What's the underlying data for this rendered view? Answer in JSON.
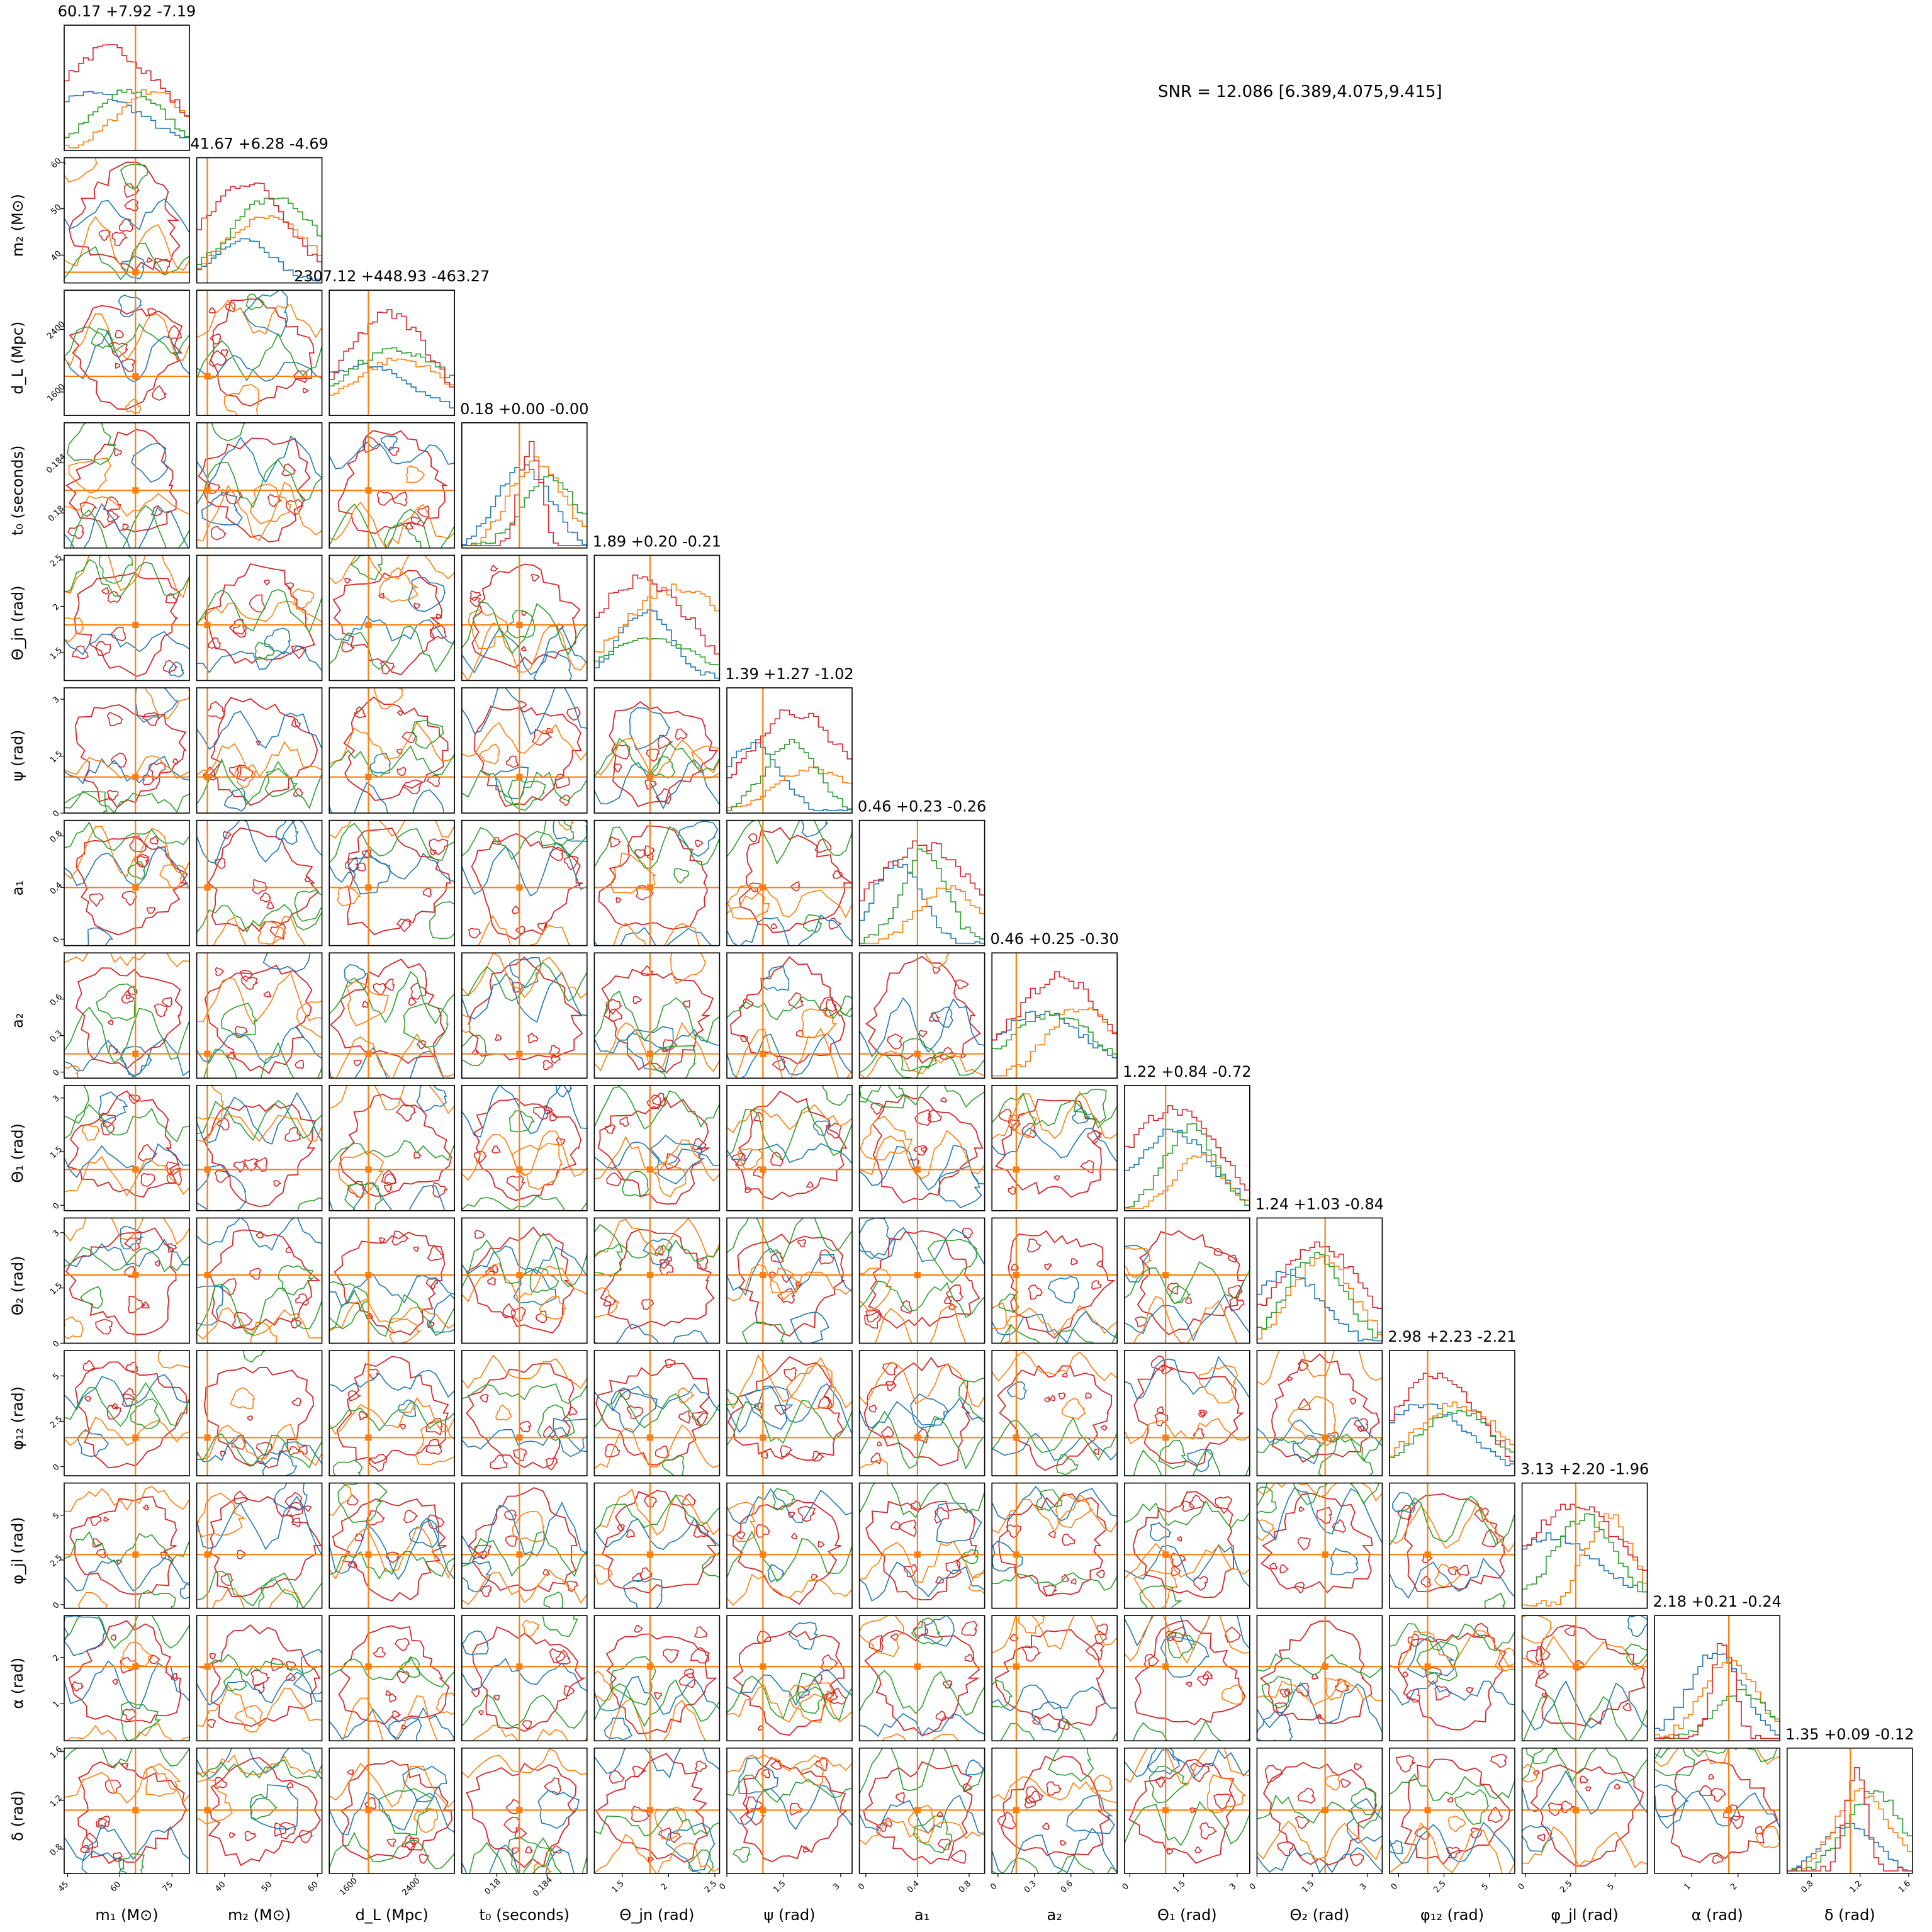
{
  "figure": {
    "snr_text": "SNR = 12.086 [6.389,4.075,9.415]"
  },
  "colors": {
    "injection": "#ff7f0e",
    "run_blue": "#1f77b4",
    "run_orange": "#ff7f0e",
    "run_green": "#2ca02c",
    "run_red": "#d62728",
    "frame": "#000000"
  },
  "chart_data": {
    "type": "corner",
    "description": "",
    "parameters": [
      {
        "label": "m₁ (M⊙)",
        "title": "60.17 +7.92 -7.19",
        "median": 60.17,
        "plus": 7.92,
        "minus": 7.19,
        "range": [
          44,
          80
        ],
        "ticks": [
          45,
          60,
          75
        ],
        "truth": 64.5
      },
      {
        "label": "m₂ (M⊙)",
        "title": "41.67 +6.28 -4.69",
        "median": 41.67,
        "plus": 6.28,
        "minus": 4.69,
        "range": [
          34,
          61
        ],
        "ticks": [
          40,
          50,
          60
        ],
        "truth": 36.3
      },
      {
        "label": "d_L (Mpc)",
        "title": "2307.12 +448.93 -463.27",
        "median": 2307.12,
        "plus": 448.93,
        "minus": 463.27,
        "range": [
          1300,
          2900
        ],
        "ticks": [
          1600,
          2400
        ],
        "truth": 1800
      },
      {
        "label": "t₀ (seconds)",
        "title": "0.18 +0.00 -0.00",
        "median": 0.18,
        "plus": 0.0,
        "minus": 0.0,
        "range": [
          0.1772,
          0.1872
        ],
        "ticks": [
          0.18,
          0.184
        ],
        "truth": 0.1818
      },
      {
        "label": "Θ_jn (rad)",
        "title": "1.89 +0.20 -0.21",
        "median": 1.89,
        "plus": 0.2,
        "minus": 0.21,
        "range": [
          1.2,
          2.55
        ],
        "ticks": [
          1.5,
          2.0,
          2.5
        ],
        "truth": 1.8
      },
      {
        "label": "ψ (rad)",
        "title": "1.39 +1.27 -1.02",
        "median": 1.39,
        "plus": 1.27,
        "minus": 1.02,
        "range": [
          0.0,
          3.3
        ],
        "ticks": [
          0.0,
          1.5,
          3.0
        ],
        "truth": 0.95
      },
      {
        "label": "a₁",
        "title": "0.46 +0.23 -0.26",
        "median": 0.46,
        "plus": 0.23,
        "minus": 0.26,
        "range": [
          -0.05,
          0.92
        ],
        "ticks": [
          0.0,
          0.4,
          0.8
        ],
        "truth": 0.4
      },
      {
        "label": "a₂",
        "title": "0.46 +0.25 -0.30",
        "median": 0.46,
        "plus": 0.25,
        "minus": 0.3,
        "range": [
          -0.05,
          0.98
        ],
        "ticks": [
          0.0,
          0.3,
          0.6
        ],
        "truth": 0.15
      },
      {
        "label": "Θ₁ (rad)",
        "title": "1.22 +0.84 -0.72",
        "median": 1.22,
        "plus": 0.84,
        "minus": 0.72,
        "range": [
          -0.15,
          3.35
        ],
        "ticks": [
          0.0,
          1.5,
          3.0
        ],
        "truth": 1.0
      },
      {
        "label": "Θ₂ (rad)",
        "title": "1.24 +1.03 -0.84",
        "median": 1.24,
        "plus": 1.03,
        "minus": 0.84,
        "range": [
          0.0,
          3.4
        ],
        "ticks": [
          0.0,
          1.5,
          3.0
        ],
        "truth": 1.85
      },
      {
        "label": "φ₁₂ (rad)",
        "title": "2.98 +2.23 -2.21",
        "median": 2.98,
        "plus": 2.23,
        "minus": 2.21,
        "range": [
          -0.5,
          6.4
        ],
        "ticks": [
          0.0,
          2.5,
          5.0
        ],
        "truth": 1.6
      },
      {
        "label": "φ_jl (rad)",
        "title": "3.13 +2.20 -1.96",
        "median": 3.13,
        "plus": 2.2,
        "minus": 1.96,
        "range": [
          -0.2,
          6.8
        ],
        "ticks": [
          0.0,
          2.5,
          5.0
        ],
        "truth": 2.8
      },
      {
        "label": "α (rad)",
        "title": "2.18 +0.21 -0.24",
        "median": 2.18,
        "plus": 0.21,
        "minus": 0.24,
        "range": [
          0.2,
          2.9
        ],
        "ticks": [
          1,
          2
        ],
        "truth": 1.8
      },
      {
        "label": "δ (rad)",
        "title": "1.35 +0.09 -0.12",
        "median": 1.35,
        "plus": 0.09,
        "minus": 0.12,
        "range": [
          0.6,
          1.63
        ],
        "ticks": [
          0.8,
          1.2,
          1.6
        ],
        "truth": 1.12
      }
    ],
    "series": [
      {
        "color": "#1f77b4"
      },
      {
        "color": "#ff7f0e"
      },
      {
        "color": "#2ca02c"
      },
      {
        "color": "#d62728"
      }
    ],
    "title": "",
    "xlabel": "",
    "ylabel": "",
    "legend": "none",
    "grid": false
  }
}
